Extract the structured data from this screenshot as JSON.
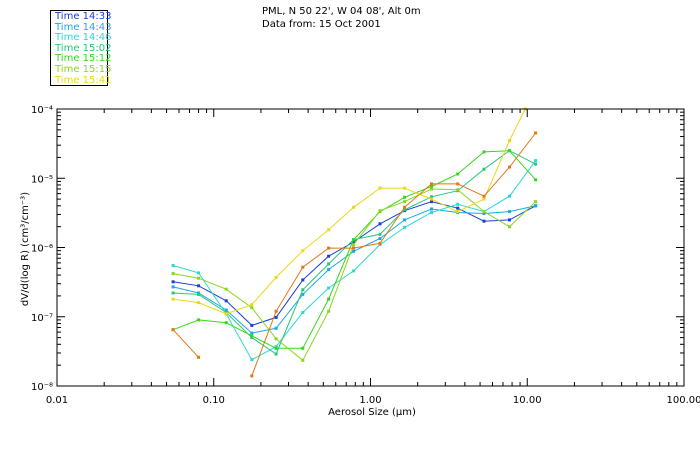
{
  "header": {
    "line1": "PML, N 50 22', W 04 08', Alt 0m",
    "line2": "Data from: 15 Oct 2001"
  },
  "chart_data": {
    "type": "line",
    "xscale": "log",
    "yscale": "log",
    "xlim": [
      0.01,
      100
    ],
    "ylim": [
      1e-08,
      0.0001
    ],
    "xlabel": "Aerosol Size (μm)",
    "ylabel": "dV/d(log R) (cm³/cm⁻³)",
    "x_ticks": [
      "0.01",
      "0.10",
      "1.00",
      "10.00",
      "100.00"
    ],
    "y_ticks": [
      "10⁻⁸",
      "10⁻⁷",
      "10⁻⁶",
      "10⁻⁵",
      "10⁻⁴"
    ],
    "legend_position": "top-left",
    "series": [
      {
        "name": "Time 14:33",
        "color": "#1a3ed8",
        "x": [
          0.055,
          0.08,
          0.12,
          0.175,
          0.25,
          0.37,
          0.54,
          0.78,
          1.15,
          1.65,
          2.45,
          3.6,
          5.3,
          7.7,
          11.3
        ],
        "y": [
          3.2e-07,
          2.8e-07,
          1.7e-07,
          7.5e-08,
          9.8e-08,
          3.4e-07,
          7.5e-07,
          1.2e-06,
          2.2e-06,
          3.4e-06,
          4.6e-06,
          3.7e-06,
          2.4e-06,
          2.5e-06,
          4e-06
        ]
      },
      {
        "name": "Time 14:43",
        "color": "#1aa8e8",
        "x": [
          0.055,
          0.08,
          0.12,
          0.175,
          0.25,
          0.37,
          0.54,
          0.78,
          1.15,
          1.65,
          2.45,
          3.6,
          5.3,
          7.7,
          11.3
        ],
        "y": [
          2.7e-07,
          2.2e-07,
          1.25e-07,
          5.8e-08,
          6.8e-08,
          2.1e-07,
          4.8e-07,
          8.8e-07,
          1.35e-06,
          2.5e-06,
          3.6e-06,
          3.2e-06,
          3.1e-06,
          3.3e-06,
          4e-06
        ]
      },
      {
        "name": "Time 14:46",
        "color": "#2ad8d8",
        "x": [
          0.055,
          0.08,
          0.12,
          0.175,
          0.25,
          0.37,
          0.54,
          0.78,
          1.15,
          1.65,
          2.45,
          3.6,
          5.3,
          7.7,
          11.3
        ],
        "y": [
          5.5e-07,
          4.3e-07,
          1.1e-07,
          2.4e-08,
          3.7e-08,
          1.15e-07,
          2.6e-07,
          4.6e-07,
          1.1e-06,
          1.95e-06,
          3.2e-06,
          4.2e-06,
          3.3e-06,
          5.5e-06,
          1.8e-05
        ]
      },
      {
        "name": "Time 15:02",
        "color": "#28c878",
        "x": [
          0.055,
          0.08,
          0.12,
          0.175,
          0.25,
          0.37,
          0.54,
          0.78,
          1.15,
          1.65,
          2.45,
          3.6,
          5.3,
          7.7,
          11.3
        ],
        "y": [
          2.2e-07,
          2.1e-07,
          1.15e-07,
          5e-08,
          2.9e-08,
          2.45e-07,
          5.8e-07,
          1.3e-06,
          1.55e-06,
          3.5e-06,
          5.4e-06,
          6.6e-06,
          1.35e-05,
          2.5e-05,
          1.6e-05
        ]
      },
      {
        "name": "Time 15:12",
        "color": "#34d818",
        "x": [
          0.055,
          0.08,
          0.12,
          0.175,
          0.25,
          0.37,
          0.54,
          0.78,
          1.15,
          1.65,
          2.45,
          3.6,
          5.3,
          7.7,
          11.3
        ],
        "y": [
          6.5e-08,
          9e-08,
          8.2e-08,
          5.3e-08,
          3.5e-08,
          3.5e-08,
          1.8e-07,
          1.3e-06,
          3.3e-06,
          5.3e-06,
          7.6e-06,
          1.15e-05,
          2.4e-05,
          2.5e-05,
          9.5e-06
        ]
      },
      {
        "name": "Time 15:15",
        "color": "#88d818",
        "x": [
          0.055,
          0.08,
          0.12,
          0.175,
          0.25,
          0.37,
          0.54,
          0.78,
          1.15,
          1.65,
          2.45,
          3.6,
          5.3,
          7.7,
          11.3
        ],
        "y": [
          4.2e-07,
          3.6e-07,
          2.5e-07,
          1.35e-07,
          4.8e-08,
          2.35e-08,
          1.2e-07,
          1.1e-06,
          3.4e-06,
          4.6e-06,
          7e-06,
          6.8e-06,
          3.3e-06,
          2e-06,
          4.6e-06
        ]
      },
      {
        "name": "Time 15:41",
        "color": "#e8d818",
        "x": [
          0.055,
          0.08,
          0.12,
          0.175,
          0.25,
          0.37,
          0.54,
          0.78,
          1.15,
          1.65,
          2.45,
          3.6,
          5.3,
          7.7,
          9.7
        ],
        "y": [
          1.8e-07,
          1.6e-07,
          1.1e-07,
          1.5e-07,
          3.7e-07,
          9e-07,
          1.8e-06,
          3.8e-06,
          7.2e-06,
          7.2e-06,
          5e-06,
          3.3e-06,
          5e-06,
          3.5e-05,
          0.0001
        ]
      },
      {
        "name": "",
        "color": "#e07818",
        "x": [
          0.055,
          0.08,
          0.12,
          0.175,
          0.25,
          0.37,
          0.54,
          0.78,
          1.15,
          1.65,
          2.45,
          3.6,
          5.3,
          7.7,
          11.3
        ],
        "y": [
          6.5e-08,
          2.6e-08,
          null,
          1.4e-08,
          1.2e-07,
          5.2e-07,
          9.8e-07,
          9.8e-07,
          1.15e-06,
          3.8e-06,
          8.3e-06,
          8.3e-06,
          5.5e-06,
          1.45e-05,
          4.5e-05
        ]
      }
    ]
  }
}
